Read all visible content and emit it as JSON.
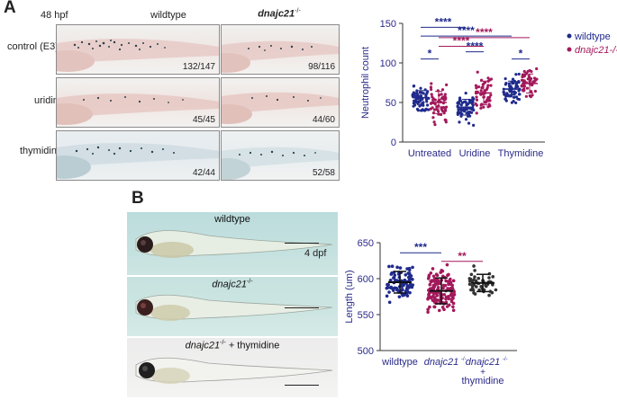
{
  "panel_a": {
    "letter": "A",
    "stage": "48 hpf",
    "col_wildtype": "wildtype",
    "col_mutant": "dnajc21",
    "col_mutant_sup": "-/-",
    "rows": [
      {
        "label": "control (E3)",
        "wt_count": "132/147",
        "mut_count": "98/116"
      },
      {
        "label": "uridine",
        "wt_count": "45/45",
        "mut_count": "44/60"
      },
      {
        "label": "thymidine",
        "wt_count": "42/44",
        "mut_count": "52/58"
      }
    ]
  },
  "panel_b": {
    "letter": "B",
    "stage": "4 dpf",
    "photo_labels": [
      {
        "text": "wildtype",
        "sup": "",
        "suffix": ""
      },
      {
        "text": "dnajc21",
        "sup": "-/-",
        "suffix": ""
      },
      {
        "text": "dnajc21",
        "sup": "-/-",
        "suffix": " + thymidine"
      }
    ]
  },
  "colors": {
    "wildtype": "#1f2a8c",
    "mutant": "#a3195b",
    "axis": "#2a2a8a"
  },
  "chart_data": [
    {
      "type": "scatter",
      "ylabel": "Neutrophil count",
      "ylim": [
        0,
        150
      ],
      "yticks": [
        0,
        50,
        100,
        150
      ],
      "categories": [
        "Untreated",
        "Uridine",
        "Thymidine"
      ],
      "legend": [
        {
          "name": "wildtype",
          "color": "#1f2a8c"
        },
        {
          "name": "dnajc21-/-",
          "color": "#a3195b"
        }
      ],
      "legend_position": "right",
      "series": [
        {
          "name": "wildtype",
          "means": [
            56,
            44,
            67
          ],
          "sd": [
            9,
            10,
            10
          ]
        },
        {
          "name": "dnajc21-/-",
          "means": [
            50,
            62,
            74
          ],
          "sd": [
            14,
            15,
            12
          ]
        }
      ],
      "significance": [
        {
          "label": "*",
          "color": "blue"
        },
        {
          "label": "****",
          "color": "blue"
        },
        {
          "label": "*",
          "color": "blue"
        },
        {
          "label": "****",
          "color": "blue"
        },
        {
          "label": "****",
          "color": "blue"
        },
        {
          "label": "****",
          "color": "magenta"
        },
        {
          "label": "****",
          "color": "magenta"
        }
      ]
    },
    {
      "type": "scatter",
      "ylabel": "Length (um)",
      "ylim": [
        500,
        650
      ],
      "yticks": [
        500,
        550,
        600,
        650
      ],
      "categories": [
        "wildtype",
        "dnajc21-/-",
        "dnajc21-/- + thymidine"
      ],
      "series": [
        {
          "name": "wildtype",
          "mean": 595,
          "sd": 15
        },
        {
          "name": "dnajc21-/-",
          "mean": 583,
          "sd": 18
        },
        {
          "name": "dnajc21-/- + thymidine",
          "mean": 594,
          "sd": 12
        }
      ],
      "significance": [
        {
          "label": "***",
          "color": "blue"
        },
        {
          "label": "**",
          "color": "magenta"
        }
      ]
    }
  ]
}
